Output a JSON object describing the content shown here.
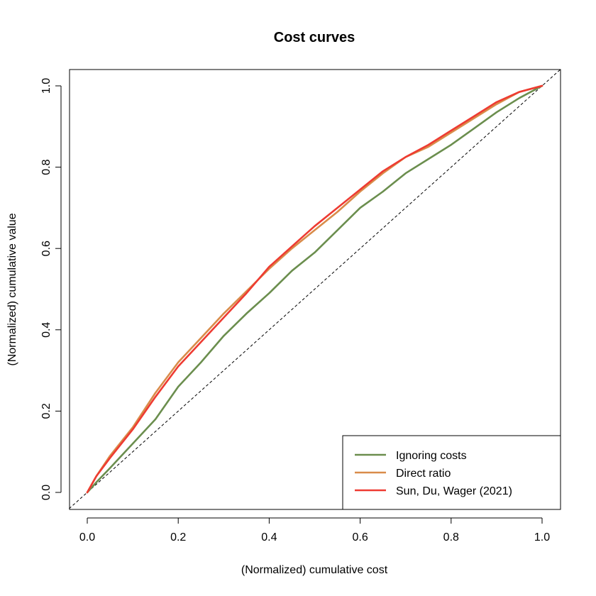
{
  "chart_data": {
    "type": "line",
    "title": "Cost curves",
    "xlabel": "(Normalized) cumulative cost",
    "ylabel": "(Normalized) cumulative value",
    "xlim": [
      0,
      1
    ],
    "ylim": [
      0,
      1
    ],
    "xticks": [
      "0.0",
      "0.2",
      "0.4",
      "0.6",
      "0.8",
      "1.0"
    ],
    "yticks": [
      "0.0",
      "0.2",
      "0.4",
      "0.6",
      "0.8",
      "1.0"
    ],
    "grid": false,
    "legend_position": "bottom-right",
    "reference_line": {
      "style": "dashed",
      "from": [
        0,
        0
      ],
      "to": [
        1,
        1
      ],
      "color": "#000000"
    },
    "series": [
      {
        "name": "Ignoring costs",
        "color": "#6B8E4E",
        "x": [
          0,
          0.02,
          0.05,
          0.1,
          0.15,
          0.2,
          0.25,
          0.3,
          0.35,
          0.4,
          0.45,
          0.5,
          0.55,
          0.6,
          0.65,
          0.7,
          0.75,
          0.8,
          0.85,
          0.9,
          0.95,
          1.0
        ],
        "y": [
          0,
          0.025,
          0.06,
          0.12,
          0.18,
          0.26,
          0.32,
          0.385,
          0.44,
          0.49,
          0.545,
          0.59,
          0.645,
          0.7,
          0.74,
          0.785,
          0.82,
          0.855,
          0.895,
          0.935,
          0.97,
          1.0
        ]
      },
      {
        "name": "Direct ratio",
        "color": "#D98C4A",
        "x": [
          0,
          0.02,
          0.05,
          0.1,
          0.15,
          0.2,
          0.25,
          0.3,
          0.35,
          0.4,
          0.45,
          0.5,
          0.55,
          0.6,
          0.65,
          0.7,
          0.75,
          0.8,
          0.85,
          0.9,
          0.95,
          1.0
        ],
        "y": [
          0,
          0.04,
          0.09,
          0.16,
          0.245,
          0.32,
          0.38,
          0.44,
          0.495,
          0.55,
          0.6,
          0.645,
          0.69,
          0.74,
          0.785,
          0.825,
          0.85,
          0.885,
          0.92,
          0.955,
          0.985,
          1.0
        ]
      },
      {
        "name": "Sun, Du, Wager (2021)",
        "color": "#EE3B32",
        "x": [
          0,
          0.02,
          0.05,
          0.1,
          0.15,
          0.2,
          0.25,
          0.3,
          0.35,
          0.4,
          0.45,
          0.5,
          0.55,
          0.6,
          0.65,
          0.7,
          0.75,
          0.8,
          0.85,
          0.9,
          0.95,
          1.0
        ],
        "y": [
          0,
          0.04,
          0.085,
          0.155,
          0.235,
          0.31,
          0.37,
          0.43,
          0.49,
          0.555,
          0.605,
          0.655,
          0.7,
          0.745,
          0.79,
          0.825,
          0.855,
          0.89,
          0.925,
          0.96,
          0.985,
          1.0
        ]
      }
    ]
  }
}
